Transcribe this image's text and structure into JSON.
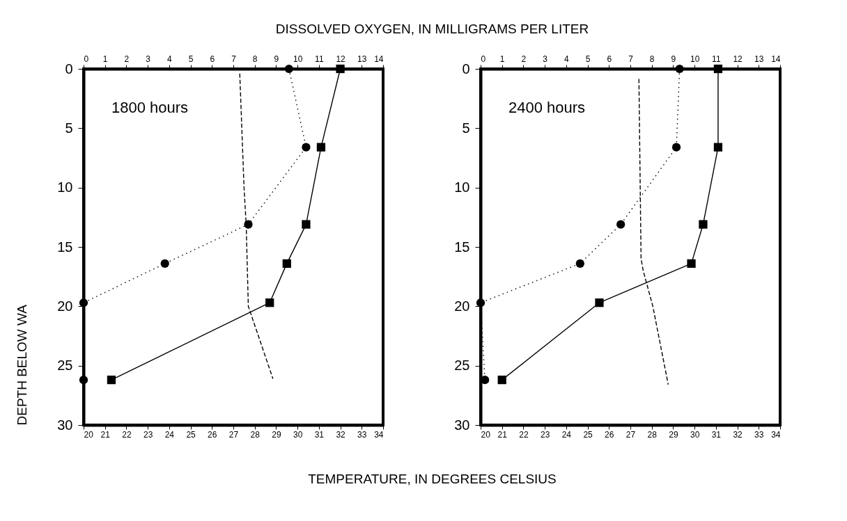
{
  "chart_data": [
    {
      "type": "line",
      "xlabel": "TEMPERATURE, IN DEGREES CELSIUS",
      "x2label": "DISSOLVED OXYGEN, IN MILLIGRAMS PER LITER",
      "ylabel": "DEPTH BELOW WA",
      "annotations": [
        "1800 hours"
      ],
      "xlim": [
        20,
        34
      ],
      "xticks": [
        20,
        21,
        22,
        23,
        24,
        25,
        26,
        27,
        28,
        29,
        30,
        31,
        32,
        33,
        34
      ],
      "x2lim": [
        0,
        14
      ],
      "x2ticks": [
        0,
        1,
        2,
        3,
        4,
        5,
        6,
        7,
        8,
        9,
        10,
        11,
        12,
        13,
        14
      ],
      "ylim": [
        30,
        0
      ],
      "yticks": [
        0,
        5,
        10,
        15,
        20,
        25,
        30
      ],
      "series": [
        {
          "color": "#000000",
          "axis": "x2",
          "marker": "circle",
          "line_style": "dotted",
          "x": [
            9.6,
            10.4,
            7.7,
            3.8,
            0,
            0
          ],
          "values": [
            0,
            6.6,
            13.1,
            16.4,
            19.7,
            26.2
          ]
        },
        {
          "color": "#000000",
          "marker": "square",
          "line_style": "solid",
          "x": [
            32.0,
            31.1,
            30.4,
            29.5,
            28.7,
            21.3
          ],
          "values": [
            0,
            6.6,
            13.1,
            16.4,
            19.7,
            26.2
          ]
        },
        {
          "color": "#000000",
          "marker": "none",
          "line_style": "dashed",
          "x": [
            27.3,
            27.5,
            27.6,
            27.7,
            28.85
          ],
          "values": [
            0.4,
            10,
            13.1,
            20,
            26.1
          ]
        }
      ]
    },
    {
      "type": "line",
      "annotations": [
        "2400 hours"
      ],
      "xlim": [
        20,
        34
      ],
      "xticks": [
        20,
        21,
        22,
        23,
        24,
        25,
        26,
        27,
        28,
        29,
        30,
        31,
        32,
        33,
        34
      ],
      "x2lim": [
        0,
        14
      ],
      "x2ticks": [
        0,
        1,
        2,
        3,
        4,
        5,
        6,
        7,
        8,
        9,
        10,
        11,
        12,
        13,
        14
      ],
      "ylim": [
        30,
        0
      ],
      "yticks": [
        0,
        5,
        10,
        15,
        20,
        25,
        30
      ],
      "series": [
        {
          "color": "#000000",
          "axis": "x2",
          "marker": "circle",
          "line_style": "dotted",
          "x": [
            9.3,
            9.15,
            6.55,
            4.65,
            0,
            0.2
          ],
          "values": [
            0,
            6.6,
            13.1,
            16.4,
            19.7,
            26.2
          ]
        },
        {
          "color": "#000000",
          "marker": "square",
          "line_style": "solid",
          "x": [
            31.1,
            31.1,
            30.4,
            29.85,
            25.55,
            21.0
          ],
          "values": [
            0,
            6.6,
            13.1,
            16.4,
            19.7,
            26.2
          ]
        },
        {
          "color": "#000000",
          "marker": "none",
          "line_style": "dashed",
          "x": [
            27.4,
            27.5,
            27.6,
            28.05,
            28.77
          ],
          "values": [
            0.85,
            16,
            17,
            20,
            26.6
          ]
        }
      ]
    }
  ]
}
